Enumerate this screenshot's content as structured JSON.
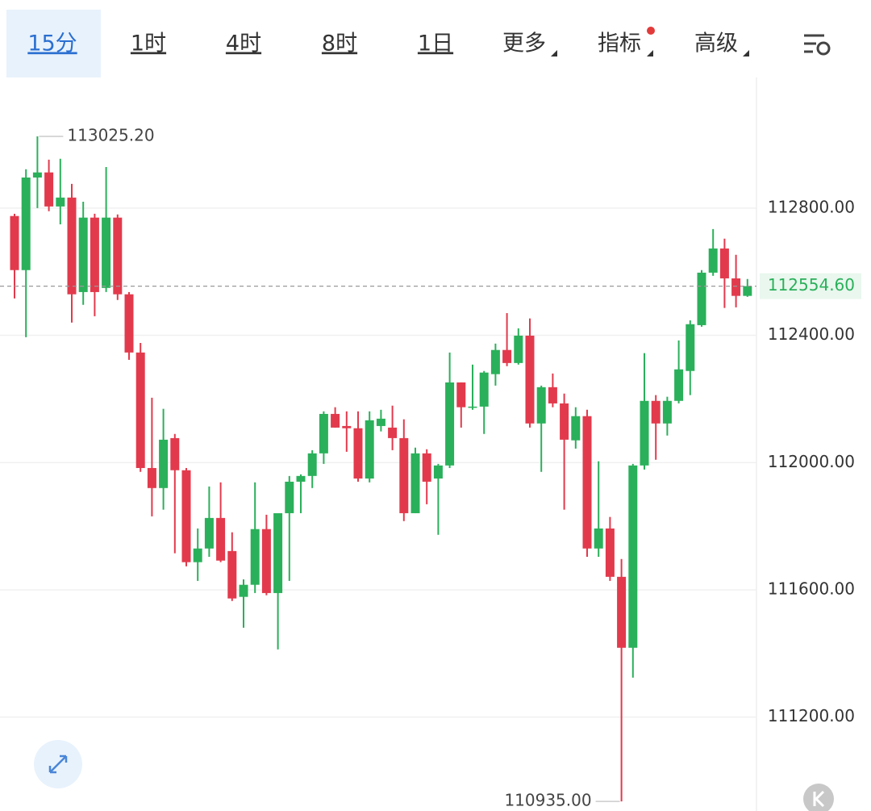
{
  "tabs": [
    "15分",
    "1时",
    "4时",
    "8时",
    "1日",
    "更多",
    "指标",
    "高级"
  ],
  "chart_data": {
    "type": "candlestick",
    "up_color": "#2ab05a",
    "down_color": "#e23a4c",
    "ylim": [
      110905,
      113213
    ],
    "yticks": [
      {
        "value": 112800,
        "label": "112800.00"
      },
      {
        "value": 112400,
        "label": "112400.00"
      },
      {
        "value": 112000,
        "label": "112000.00"
      },
      {
        "value": 111600,
        "label": "111600.00"
      },
      {
        "value": 111200,
        "label": "111200.00"
      }
    ],
    "grid": true,
    "high_label": "113025.20",
    "low_label": "110935.00",
    "last_label": "112554.60",
    "open": [
      112775,
      112605,
      112896,
      112912,
      112805,
      112833,
      112536,
      112770,
      112549,
      112770,
      112529,
      112346,
      111983,
      111920,
      112077,
      111976,
      111687,
      111730,
      111826,
      111722,
      111578,
      111616,
      111791,
      111590,
      111841,
      111940,
      111958,
      112029,
      112153,
      112115,
      112108,
      111950,
      112115,
      112110,
      112077,
      111841,
      112029,
      111950,
      111991,
      112252,
      112174,
      112176,
      112278,
      112354,
      112313,
      112399,
      112123,
      112237,
      112186,
      112070,
      112146,
      111730,
      111793,
      111641,
      111418,
      111991,
      112194,
      112123,
      112194,
      112288,
      112432,
      112597,
      112673,
      112579,
      112524
    ],
    "high": [
      112782,
      112922,
      113025.2,
      112952,
      112955,
      112876,
      112820,
      112782,
      112929,
      112780,
      112536,
      112376,
      112204,
      112169,
      112090,
      111983,
      111793,
      111925,
      111938,
      111781,
      111633,
      111938,
      111836,
      111841,
      111958,
      111963,
      112039,
      112161,
      112174,
      112161,
      112161,
      112161,
      112166,
      112179,
      112136,
      112047,
      112042,
      111996,
      112346,
      112252,
      112308,
      112288,
      112374,
      112470,
      112422,
      112453,
      112242,
      112280,
      112217,
      112174,
      112166,
      112004,
      111829,
      111697,
      111996,
      112344,
      112212,
      112207,
      112384,
      112447,
      112605,
      112734,
      112704,
      112653,
      112577
    ],
    "low": [
      112516,
      112394,
      112800,
      112790,
      112749,
      112440,
      112496,
      112460,
      112536,
      112511,
      112323,
      111971,
      111831,
      111852,
      111715,
      111674,
      111628,
      111704,
      111687,
      111565,
      111481,
      111590,
      111583,
      111413,
      111628,
      111841,
      111920,
      111996,
      112110,
      112034,
      111940,
      111938,
      112098,
      112039,
      111816,
      111841,
      111869,
      111773,
      111983,
      112110,
      112166,
      112090,
      112242,
      112303,
      112308,
      112110,
      111971,
      112174,
      111852,
      112044,
      111704,
      111704,
      111628,
      110935,
      111324,
      111978,
      112009,
      112085,
      112186,
      112212,
      112427,
      112587,
      112486,
      112488,
      112521
    ],
    "close": [
      112605,
      112896,
      112912,
      112805,
      112833,
      112529,
      112770,
      112536,
      112770,
      112529,
      112346,
      111983,
      111920,
      112072,
      111976,
      111687,
      111730,
      111826,
      111692,
      111573,
      111616,
      111791,
      111590,
      111841,
      111940,
      111958,
      112029,
      112153,
      112110,
      112108,
      111950,
      112133,
      112138,
      112077,
      111841,
      112029,
      111940,
      111991,
      112252,
      112174,
      112176,
      112283,
      112354,
      112313,
      112399,
      112123,
      112237,
      112186,
      112072,
      112146,
      111730,
      111793,
      111641,
      111418,
      111991,
      112194,
      112123,
      112194,
      112293,
      112435,
      112597,
      112673,
      112579,
      112524,
      112554.6
    ]
  }
}
